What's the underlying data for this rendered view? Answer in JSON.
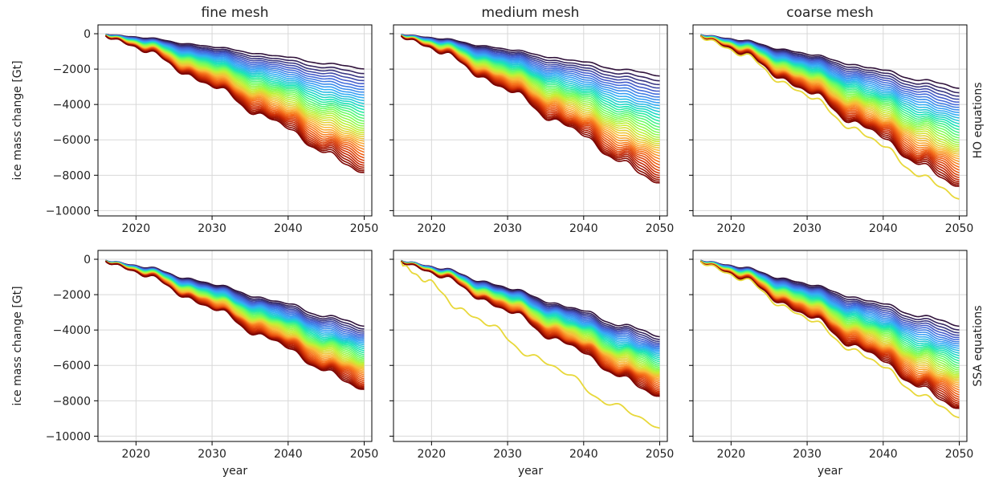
{
  "figure": {
    "ylabel": "ice mass change [Gt]",
    "xlabel": "year"
  },
  "colormap_name": "turbo",
  "colormap_stops": [
    "#30123b",
    "#4662d7",
    "#36aaf9",
    "#1ae4b6",
    "#72fe5e",
    "#c8ef34",
    "#faba39",
    "#f66b19",
    "#ca2a04",
    "#7a0403"
  ],
  "chart_data": [
    {
      "type": "line",
      "title": "fine mesh",
      "row_label": "",
      "xlim": [
        2015,
        2051
      ],
      "ylim": [
        -10300,
        500
      ],
      "xticks": [
        2020,
        2030,
        2040,
        2050
      ],
      "yticks": [
        0,
        -2000,
        -4000,
        -6000,
        -8000,
        -10000
      ],
      "grid": true,
      "ensemble": {
        "n_members": 40,
        "x_start": 2016,
        "x_end": 2050,
        "end_min": -2000,
        "end_max": -8000,
        "outlier": null,
        "outlier_color": "#e8d83a"
      }
    },
    {
      "type": "line",
      "title": "medium mesh",
      "row_label": "",
      "xlim": [
        2015,
        2051
      ],
      "ylim": [
        -10300,
        500
      ],
      "xticks": [
        2020,
        2030,
        2040,
        2050
      ],
      "yticks": [
        0,
        -2000,
        -4000,
        -6000,
        -8000,
        -10000
      ],
      "grid": true,
      "ensemble": {
        "n_members": 40,
        "x_start": 2016,
        "x_end": 2050,
        "end_min": -2400,
        "end_max": -8600,
        "outlier": null,
        "outlier_color": "#e8d83a"
      }
    },
    {
      "type": "line",
      "title": "coarse mesh",
      "row_label": "HO equations",
      "xlim": [
        2015,
        2051
      ],
      "ylim": [
        -10300,
        500
      ],
      "xticks": [
        2020,
        2030,
        2040,
        2050
      ],
      "yticks": [
        0,
        -2000,
        -4000,
        -6000,
        -8000,
        -10000
      ],
      "grid": true,
      "ensemble": {
        "n_members": 40,
        "x_start": 2016,
        "x_end": 2050,
        "end_min": -3100,
        "end_max": -8800,
        "outlier": -9500,
        "outlier_color": "#e8d83a"
      }
    },
    {
      "type": "line",
      "title": "",
      "row_label": "",
      "xlim": [
        2015,
        2051
      ],
      "ylim": [
        -10300,
        500
      ],
      "xticks": [
        2020,
        2030,
        2040,
        2050
      ],
      "yticks": [
        0,
        -2000,
        -4000,
        -6000,
        -8000,
        -10000
      ],
      "grid": true,
      "ensemble": {
        "n_members": 40,
        "x_start": 2016,
        "x_end": 2050,
        "end_min": -3800,
        "end_max": -7500,
        "outlier": null,
        "outlier_color": "#e8d83a"
      }
    },
    {
      "type": "line",
      "title": "",
      "row_label": "",
      "xlim": [
        2015,
        2051
      ],
      "ylim": [
        -10300,
        500
      ],
      "xticks": [
        2020,
        2030,
        2040,
        2050
      ],
      "yticks": [
        0,
        -2000,
        -4000,
        -6000,
        -8000,
        -10000
      ],
      "grid": true,
      "ensemble": {
        "n_members": 40,
        "x_start": 2016,
        "x_end": 2050,
        "end_min": -4400,
        "end_max": -7900,
        "outlier": -9700,
        "outlier_color": "#e8d83a"
      }
    },
    {
      "type": "line",
      "title": "",
      "row_label": "SSA equations",
      "xlim": [
        2015,
        2051
      ],
      "ylim": [
        -10300,
        500
      ],
      "xticks": [
        2020,
        2030,
        2040,
        2050
      ],
      "yticks": [
        0,
        -2000,
        -4000,
        -6000,
        -8000,
        -10000
      ],
      "grid": true,
      "ensemble": {
        "n_members": 40,
        "x_start": 2016,
        "x_end": 2050,
        "end_min": -3800,
        "end_max": -8600,
        "outlier": -9100,
        "outlier_color": "#e8d83a"
      }
    }
  ]
}
